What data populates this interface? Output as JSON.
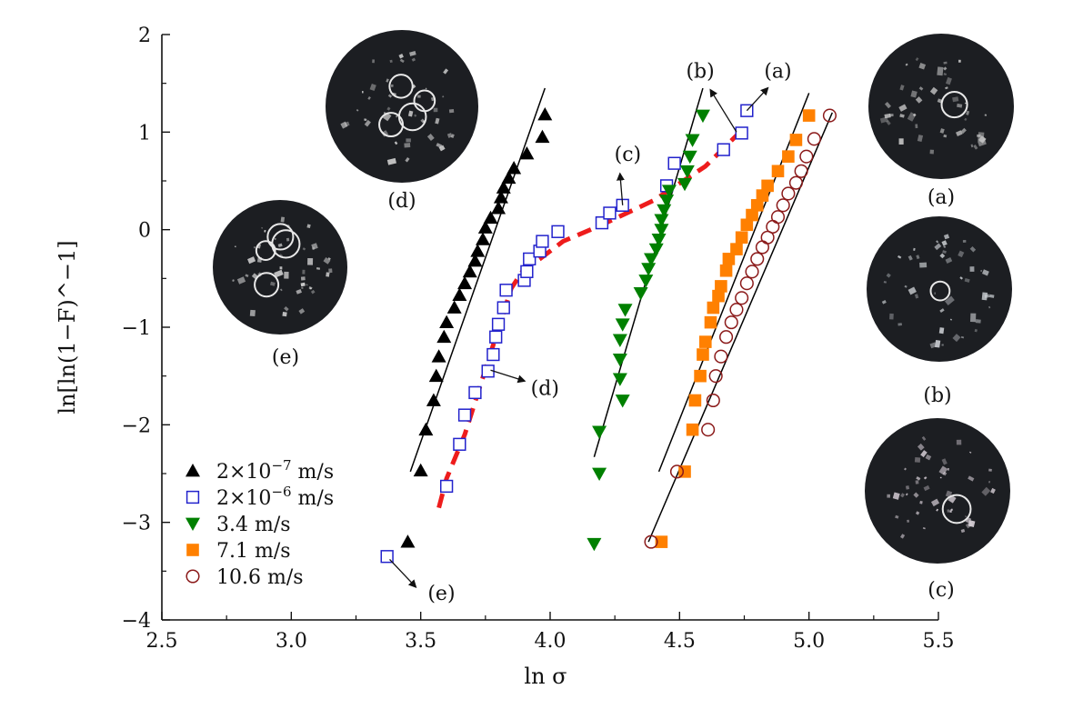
{
  "chart_data": {
    "type": "scatter",
    "title": "",
    "xlabel": "ln σ",
    "ylabel": "ln[ln(1−F)^−1]",
    "xlim": [
      2.5,
      5.5
    ],
    "ylim": [
      -4,
      2
    ],
    "x_ticks": [
      2.5,
      3.0,
      3.5,
      4.0,
      4.5,
      5.0,
      5.5
    ],
    "x_tick_labels": [
      "2.5",
      "3.0",
      "3.5",
      "4.0",
      "4.5",
      "5.0",
      "5.5"
    ],
    "y_ticks": [
      -4,
      -3,
      -2,
      -1,
      0,
      1,
      2
    ],
    "y_tick_labels": [
      "−4",
      "−3",
      "−2",
      "−1",
      "0",
      "1",
      "2"
    ],
    "grid": false,
    "legend": {
      "position": "bottom-left",
      "entries": [
        {
          "base": "2×10",
          "exp": "−7",
          "unit": " m/s"
        },
        {
          "base": "2×10",
          "exp": "−6",
          "unit": " m/s"
        },
        {
          "base": "3.4 m/s",
          "exp": "",
          "unit": ""
        },
        {
          "base": "7.1 m/s",
          "exp": "",
          "unit": ""
        },
        {
          "base": "10.6 m/s",
          "exp": "",
          "unit": ""
        }
      ]
    },
    "series": [
      {
        "marker": "triangle-up",
        "color": "#000000",
        "points": [
          [
            3.45,
            -3.2
          ],
          [
            3.5,
            -2.47
          ],
          [
            3.52,
            -2.05
          ],
          [
            3.55,
            -1.75
          ],
          [
            3.56,
            -1.5
          ],
          [
            3.57,
            -1.3
          ],
          [
            3.59,
            -1.1
          ],
          [
            3.6,
            -0.95
          ],
          [
            3.63,
            -0.8
          ],
          [
            3.65,
            -0.67
          ],
          [
            3.67,
            -0.55
          ],
          [
            3.69,
            -0.43
          ],
          [
            3.71,
            -0.32
          ],
          [
            3.72,
            -0.22
          ],
          [
            3.74,
            -0.1
          ],
          [
            3.75,
            0.02
          ],
          [
            3.77,
            0.12
          ],
          [
            3.8,
            0.22
          ],
          [
            3.81,
            0.33
          ],
          [
            3.82,
            0.43
          ],
          [
            3.84,
            0.53
          ],
          [
            3.86,
            0.63
          ],
          [
            3.91,
            0.78
          ],
          [
            3.97,
            0.95
          ],
          [
            3.98,
            1.18
          ]
        ]
      },
      {
        "marker": "square-open",
        "color": "#2222cc",
        "points": [
          [
            3.37,
            -3.35
          ],
          [
            3.6,
            -2.63
          ],
          [
            3.65,
            -2.2
          ],
          [
            3.67,
            -1.9
          ],
          [
            3.71,
            -1.67
          ],
          [
            3.76,
            -1.45
          ],
          [
            3.78,
            -1.28
          ],
          [
            3.79,
            -1.1
          ],
          [
            3.8,
            -0.97
          ],
          [
            3.82,
            -0.8
          ],
          [
            3.83,
            -0.62
          ],
          [
            3.9,
            -0.52
          ],
          [
            3.91,
            -0.43
          ],
          [
            3.92,
            -0.3
          ],
          [
            3.96,
            -0.22
          ],
          [
            3.97,
            -0.12
          ],
          [
            4.03,
            -0.02
          ],
          [
            4.2,
            0.07
          ],
          [
            4.23,
            0.17
          ],
          [
            4.28,
            0.25
          ],
          [
            4.45,
            0.45
          ],
          [
            4.48,
            0.68
          ],
          [
            4.67,
            0.82
          ],
          [
            4.74,
            0.99
          ],
          [
            4.76,
            1.22
          ]
        ]
      },
      {
        "marker": "triangle-down",
        "color": "#008000",
        "points": [
          [
            4.17,
            -3.22
          ],
          [
            4.19,
            -2.5
          ],
          [
            4.19,
            -2.07
          ],
          [
            4.28,
            -1.75
          ],
          [
            4.27,
            -1.53
          ],
          [
            4.27,
            -1.33
          ],
          [
            4.27,
            -1.13
          ],
          [
            4.28,
            -0.97
          ],
          [
            4.29,
            -0.82
          ],
          [
            4.35,
            -0.65
          ],
          [
            4.37,
            -0.52
          ],
          [
            4.38,
            -0.4
          ],
          [
            4.39,
            -0.3
          ],
          [
            4.41,
            -0.2
          ],
          [
            4.42,
            -0.1
          ],
          [
            4.43,
            0.0
          ],
          [
            4.43,
            0.1
          ],
          [
            4.44,
            0.2
          ],
          [
            4.45,
            0.3
          ],
          [
            4.46,
            0.4
          ],
          [
            4.52,
            0.47
          ],
          [
            4.53,
            0.6
          ],
          [
            4.54,
            0.75
          ],
          [
            4.55,
            0.92
          ],
          [
            4.59,
            1.17
          ]
        ]
      },
      {
        "marker": "square-filled",
        "color": "#ff8000",
        "points": [
          [
            4.43,
            -3.2
          ],
          [
            4.52,
            -2.48
          ],
          [
            4.55,
            -2.05
          ],
          [
            4.56,
            -1.75
          ],
          [
            4.58,
            -1.5
          ],
          [
            4.59,
            -1.28
          ],
          [
            4.6,
            -1.15
          ],
          [
            4.62,
            -0.95
          ],
          [
            4.63,
            -0.8
          ],
          [
            4.65,
            -0.68
          ],
          [
            4.66,
            -0.58
          ],
          [
            4.68,
            -0.42
          ],
          [
            4.69,
            -0.3
          ],
          [
            4.72,
            -0.2
          ],
          [
            4.74,
            -0.08
          ],
          [
            4.76,
            0.05
          ],
          [
            4.78,
            0.15
          ],
          [
            4.8,
            0.25
          ],
          [
            4.82,
            0.35
          ],
          [
            4.84,
            0.45
          ],
          [
            4.88,
            0.6
          ],
          [
            4.92,
            0.75
          ],
          [
            4.95,
            0.92
          ],
          [
            5.0,
            1.17
          ]
        ]
      },
      {
        "marker": "circle-open",
        "color": "#8b1a1a",
        "points": [
          [
            4.39,
            -3.2
          ],
          [
            4.49,
            -2.48
          ],
          [
            4.61,
            -2.05
          ],
          [
            4.63,
            -1.75
          ],
          [
            4.64,
            -1.5
          ],
          [
            4.66,
            -1.3
          ],
          [
            4.68,
            -1.1
          ],
          [
            4.7,
            -0.95
          ],
          [
            4.72,
            -0.82
          ],
          [
            4.74,
            -0.7
          ],
          [
            4.76,
            -0.55
          ],
          [
            4.78,
            -0.43
          ],
          [
            4.8,
            -0.3
          ],
          [
            4.82,
            -0.18
          ],
          [
            4.84,
            -0.08
          ],
          [
            4.86,
            0.03
          ],
          [
            4.88,
            0.13
          ],
          [
            4.9,
            0.25
          ],
          [
            4.92,
            0.37
          ],
          [
            4.95,
            0.48
          ],
          [
            4.97,
            0.6
          ],
          [
            4.99,
            0.75
          ],
          [
            5.02,
            0.93
          ],
          [
            5.08,
            1.17
          ]
        ]
      }
    ],
    "fit_lines": [
      {
        "color": "#000000",
        "from": [
          3.46,
          -2.48
        ],
        "to": [
          3.98,
          1.45
        ]
      },
      {
        "color": "#000000",
        "from": [
          4.17,
          -2.33
        ],
        "to": [
          4.59,
          1.45
        ]
      },
      {
        "color": "#000000",
        "from": [
          4.42,
          -2.48
        ],
        "to": [
          5.0,
          1.4
        ]
      },
      {
        "color": "#000000",
        "from": [
          4.38,
          -3.2
        ],
        "to": [
          5.09,
          1.2
        ]
      }
    ],
    "dashed_curve": {
      "color": "#ee1c1c",
      "points": [
        [
          3.57,
          -2.85
        ],
        [
          3.6,
          -2.55
        ],
        [
          3.67,
          -2.1
        ],
        [
          3.73,
          -1.6
        ],
        [
          3.79,
          -1.1
        ],
        [
          3.85,
          -0.6
        ],
        [
          3.9,
          -0.4
        ],
        [
          3.96,
          -0.3
        ],
        [
          4.05,
          -0.12
        ],
        [
          4.2,
          0.05
        ],
        [
          4.4,
          0.3
        ],
        [
          4.6,
          0.65
        ],
        [
          4.76,
          1.07
        ]
      ]
    },
    "annotations": [
      {
        "label": "(a)",
        "text_at": [
          4.88,
          1.63
        ],
        "arrow_from": [
          4.76,
          1.22
        ],
        "arrow_to": [
          4.84,
          1.45
        ]
      },
      {
        "label": "(b)",
        "text_at": [
          4.58,
          1.63
        ],
        "arrow_from": [
          4.72,
          1.0
        ],
        "arrow_to": [
          4.62,
          1.43
        ]
      },
      {
        "label": "(c)",
        "text_at": [
          4.3,
          0.78
        ],
        "arrow_from": [
          4.28,
          0.25
        ],
        "arrow_to": [
          4.27,
          0.57
        ]
      },
      {
        "label": "(d)",
        "text_at": [
          3.98,
          -1.62
        ],
        "arrow_from": [
          3.77,
          -1.44
        ],
        "arrow_to": [
          3.9,
          -1.55
        ]
      },
      {
        "label": "(e)",
        "text_at": [
          3.58,
          -3.72
        ],
        "arrow_from": [
          3.38,
          -3.38
        ],
        "arrow_to": [
          3.48,
          -3.66
        ]
      }
    ]
  },
  "photos": [
    {
      "label": "(d)",
      "tint": "#d8d8d8"
    },
    {
      "label": "(e)",
      "tint": "#e0e0e0"
    },
    {
      "label": "(a)",
      "tint": "#c8c8c8"
    },
    {
      "label": "(b)",
      "tint": "#d0d4d8"
    },
    {
      "label": "(c)",
      "tint": "#dcd4dc"
    }
  ]
}
